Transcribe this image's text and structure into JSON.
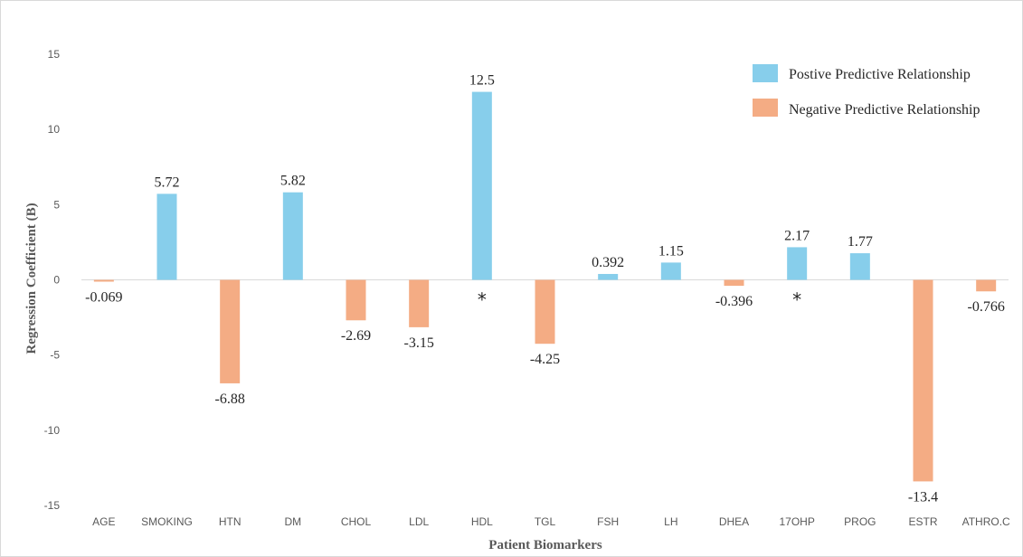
{
  "chart_data": {
    "type": "bar",
    "title": "",
    "xlabel": "Patient Biomarkers",
    "ylabel": "Regression Coefficient (B)",
    "ylim": [
      -15,
      15
    ],
    "yticks": [
      "-15",
      "-10",
      "-5",
      "0",
      "5",
      "10",
      "15"
    ],
    "ytick_values": [
      -15,
      -10,
      -5,
      0,
      5,
      10,
      15
    ],
    "grid": false,
    "legend_position": "top-right",
    "categories": [
      "AGE",
      "SMOKING",
      "HTN",
      "DM",
      "CHOL",
      "LDL",
      "HDL",
      "TGL",
      "FSH",
      "LH",
      "DHEA",
      "17OHP",
      "PROG",
      "ESTR",
      "ATHRO.C"
    ],
    "values": [
      -0.069,
      5.72,
      -6.88,
      5.82,
      -2.69,
      -3.15,
      12.5,
      -4.25,
      0.392,
      1.15,
      -0.396,
      2.17,
      1.77,
      -13.4,
      -0.766
    ],
    "value_labels": [
      "-0.069",
      "5.72",
      "-6.88",
      "5.82",
      "-2.69",
      "-3.15",
      "12.5",
      "-4.25",
      "0.392",
      "1.15",
      "-0.396",
      "2.17",
      "1.77",
      "-13.4",
      "-0.766"
    ],
    "significance_marker": "*",
    "significant": [
      "HDL",
      "17OHP"
    ],
    "legend": [
      {
        "name": "Postive Predictive Relationship",
        "color": "#87ceeb"
      },
      {
        "name": "Negative Predictive Relationship",
        "color": "#f4ac84"
      }
    ],
    "colors": {
      "positive": "#87ceeb",
      "negative": "#f4ac84",
      "zero_line": "#d9d9d9"
    }
  }
}
